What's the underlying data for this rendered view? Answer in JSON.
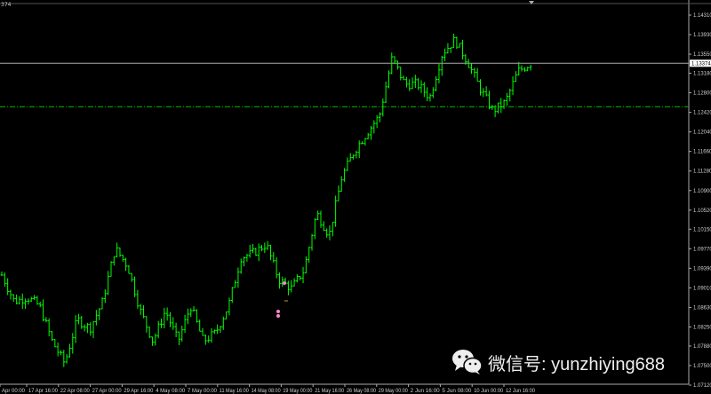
{
  "corner_label": "374",
  "watermark": "微信号: yunzhiying688",
  "chart_data": {
    "type": "ohlc",
    "title": "",
    "ylim": [
      1.0712,
      1.1431
    ],
    "y_ticks": [
      "1.14310",
      "1.13930",
      "1.13550",
      "1.13180",
      "1.12800",
      "1.12420",
      "1.12040",
      "1.11660",
      "1.11280",
      "1.10900",
      "1.10520",
      "1.10150",
      "1.09770",
      "1.09390",
      "1.09010",
      "1.08630",
      "1.08250",
      "1.07880",
      "1.07500",
      "1.07120"
    ],
    "x_ticks": [
      "Apr 00:00",
      "17 Apr 16:00",
      "22 Apr 08:00",
      "27 Apr 00:00",
      "29 Apr 16:00",
      "4 May 08:00",
      "7 May 00:00",
      "11 May 16:00",
      "14 May 08:00",
      "19 May 00:00",
      "21 May 16:00",
      "26 May 08:00",
      "29 May 00:00",
      "2 Jun 16:00",
      "5 Jun 08:00",
      "10 Jun 00:00",
      "12 Jun 16:00"
    ],
    "close_path": [
      1.0926,
      1.0874,
      1.0883,
      1.0866,
      1.0797,
      1.0754,
      1.084,
      1.0822,
      1.0874,
      1.0978,
      1.0943,
      1.0857,
      1.0797,
      1.0857,
      1.0797,
      1.0866,
      1.0797,
      1.0814,
      1.0866,
      1.096,
      1.0969,
      1.0986,
      1.0917,
      1.09,
      1.0935,
      1.1047,
      1.1003,
      1.1116,
      1.1167,
      1.1202,
      1.1236,
      1.1348,
      1.1297,
      1.1297,
      1.1271,
      1.1357,
      1.1383,
      1.134,
      1.1288,
      1.1245,
      1.1262,
      1.1322,
      1.1337
    ],
    "current_price": "1.13374",
    "level_line": 1.1253,
    "bar_color": "#00ff00",
    "level_color": "#00c000",
    "marker_color": "#ff88cc"
  }
}
